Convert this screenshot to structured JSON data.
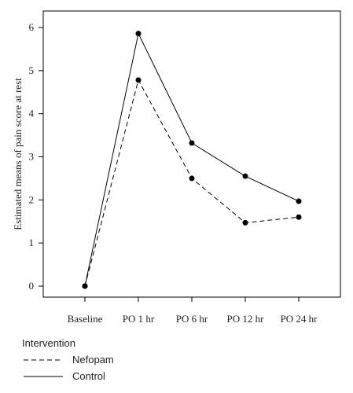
{
  "chart_data": {
    "type": "line",
    "title": "",
    "xlabel": "",
    "ylabel": "Estimated means of pain score at rest",
    "categories": [
      "Baseline",
      "PO 1 hr",
      "PO 6 hr",
      "PO 12 hr",
      "PO 24 hr"
    ],
    "ylim": [
      0,
      6
    ],
    "yticks": [
      "0",
      "1",
      "2",
      "3",
      "4",
      "5",
      "6"
    ],
    "grid": false,
    "legend": {
      "title": "Intervention",
      "placement": "bottom-left"
    },
    "series": [
      {
        "name": "Nefopam",
        "style": "dashed",
        "color": "#000000",
        "values": [
          0,
          4.78,
          2.5,
          1.47,
          1.6
        ]
      },
      {
        "name": "Control",
        "style": "solid",
        "color": "#000000",
        "values": [
          0,
          5.86,
          3.32,
          2.55,
          1.97
        ]
      }
    ]
  }
}
